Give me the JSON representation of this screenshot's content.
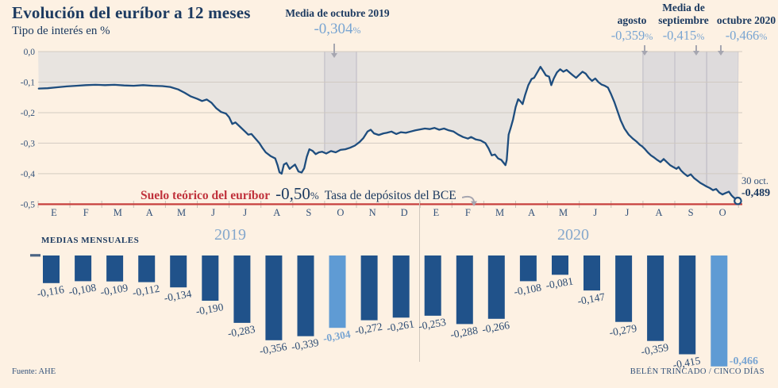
{
  "header": {
    "title": "Evolución del euríbor a 12 meses",
    "subtitle": "Tipo de interés en %"
  },
  "annotations": {
    "oct2019": {
      "label": "Media de octubre 2019",
      "value": "-0,304",
      "pct": "%"
    },
    "right_header": "Media de",
    "right_cols": [
      {
        "label": "agosto",
        "value": "-0,359",
        "pct": "%"
      },
      {
        "label": "septiembre",
        "value": "-0,415",
        "pct": "%"
      },
      {
        "label": "octubre 2020",
        "value": "-0,466",
        "pct": "%"
      }
    ],
    "floor": {
      "label": "Suelo teórico del euríbor",
      "rate": "-0,50",
      "pct": "%",
      "desc": "Tasa de depósitos del BCE"
    },
    "last_point": {
      "date": "30 oct.",
      "value": "-0,489"
    }
  },
  "bars_section": {
    "title": "MEDIAS MENSUALES",
    "year_left": "2019",
    "year_right": "2020"
  },
  "footer": {
    "source": "Fuente: AHE",
    "credit": "BELÉN TRINCADO / CINCO DÍAS"
  },
  "colors": {
    "background": "#fdf1e3",
    "ink": "#1c3a60",
    "axis": "#33527a",
    "light_blue": "#79a5d2",
    "bar_blue": "#20528a",
    "bar_light": "#5f9bd4",
    "line_blue": "#1e4d7e",
    "red": "#c7403e",
    "grid": "#cfc8bf",
    "area_fill": "#e8e4e0",
    "band_fill": "#d8d5da",
    "band_edge": "#bcb9c4",
    "arrow_gray": "#a6a6b0"
  },
  "chart_data": [
    {
      "type": "line",
      "title": "Evolución del euríbor a 12 meses",
      "ylabel": "Tipo de interés en %",
      "ylim": [
        -0.5,
        0
      ],
      "grid": true,
      "yticks": [
        "0,0",
        "-0,1",
        "-0,2",
        "-0,3",
        "-0,4",
        "-0,5"
      ],
      "ytick_values": [
        0,
        -0.1,
        -0.2,
        -0.3,
        -0.4,
        -0.5
      ],
      "x_axis": {
        "months_2019": [
          "E",
          "F",
          "M",
          "A",
          "M",
          "J",
          "J",
          "A",
          "S",
          "O",
          "N",
          "D"
        ],
        "months_2020": [
          "E",
          "F",
          "M",
          "A",
          "M",
          "J",
          "J",
          "A",
          "S",
          "O"
        ]
      },
      "floor_value": -0.5,
      "last_point": {
        "label": "30 oct.",
        "value": -0.489
      },
      "highlight_bands_months": [
        [
          9,
          10
        ],
        [
          19,
          20
        ],
        [
          20,
          21
        ],
        [
          21,
          22
        ]
      ],
      "series": [
        {
          "name": "Euríbor 12 meses (diario)",
          "points": [
            [
              0.02,
              -0.121
            ],
            [
              0.3,
              -0.12
            ],
            [
              0.6,
              -0.117
            ],
            [
              0.9,
              -0.114
            ],
            [
              1.2,
              -0.112
            ],
            [
              1.5,
              -0.11
            ],
            [
              1.8,
              -0.109
            ],
            [
              2.1,
              -0.11
            ],
            [
              2.4,
              -0.109
            ],
            [
              2.7,
              -0.111
            ],
            [
              3.0,
              -0.112
            ],
            [
              3.3,
              -0.11
            ],
            [
              3.6,
              -0.112
            ],
            [
              3.9,
              -0.113
            ],
            [
              4.15,
              -0.116
            ],
            [
              4.4,
              -0.124
            ],
            [
              4.6,
              -0.135
            ],
            [
              4.8,
              -0.147
            ],
            [
              5.0,
              -0.155
            ],
            [
              5.15,
              -0.162
            ],
            [
              5.3,
              -0.157
            ],
            [
              5.45,
              -0.168
            ],
            [
              5.6,
              -0.186
            ],
            [
              5.75,
              -0.198
            ],
            [
              5.9,
              -0.203
            ],
            [
              6.0,
              -0.215
            ],
            [
              6.1,
              -0.237
            ],
            [
              6.2,
              -0.232
            ],
            [
              6.35,
              -0.247
            ],
            [
              6.5,
              -0.262
            ],
            [
              6.6,
              -0.272
            ],
            [
              6.7,
              -0.27
            ],
            [
              6.85,
              -0.288
            ],
            [
              6.95,
              -0.3
            ],
            [
              7.05,
              -0.316
            ],
            [
              7.15,
              -0.33
            ],
            [
              7.3,
              -0.342
            ],
            [
              7.45,
              -0.35
            ],
            [
              7.52,
              -0.372
            ],
            [
              7.58,
              -0.395
            ],
            [
              7.65,
              -0.4
            ],
            [
              7.72,
              -0.37
            ],
            [
              7.8,
              -0.365
            ],
            [
              7.9,
              -0.384
            ],
            [
              7.97,
              -0.378
            ],
            [
              8.07,
              -0.37
            ],
            [
              8.18,
              -0.393
            ],
            [
              8.28,
              -0.396
            ],
            [
              8.36,
              -0.382
            ],
            [
              8.44,
              -0.345
            ],
            [
              8.52,
              -0.32
            ],
            [
              8.62,
              -0.325
            ],
            [
              8.72,
              -0.336
            ],
            [
              8.82,
              -0.33
            ],
            [
              8.92,
              -0.328
            ],
            [
              9.05,
              -0.334
            ],
            [
              9.2,
              -0.326
            ],
            [
              9.35,
              -0.33
            ],
            [
              9.5,
              -0.322
            ],
            [
              9.65,
              -0.32
            ],
            [
              9.8,
              -0.315
            ],
            [
              9.95,
              -0.308
            ],
            [
              10.1,
              -0.296
            ],
            [
              10.22,
              -0.283
            ],
            [
              10.35,
              -0.262
            ],
            [
              10.45,
              -0.256
            ],
            [
              10.55,
              -0.268
            ],
            [
              10.7,
              -0.273
            ],
            [
              10.85,
              -0.268
            ],
            [
              10.95,
              -0.266
            ],
            [
              11.1,
              -0.262
            ],
            [
              11.25,
              -0.27
            ],
            [
              11.4,
              -0.264
            ],
            [
              11.55,
              -0.266
            ],
            [
              11.7,
              -0.262
            ],
            [
              11.85,
              -0.258
            ],
            [
              12.0,
              -0.255
            ],
            [
              12.15,
              -0.252
            ],
            [
              12.3,
              -0.254
            ],
            [
              12.45,
              -0.25
            ],
            [
              12.6,
              -0.256
            ],
            [
              12.75,
              -0.252
            ],
            [
              12.9,
              -0.258
            ],
            [
              13.05,
              -0.262
            ],
            [
              13.2,
              -0.272
            ],
            [
              13.35,
              -0.28
            ],
            [
              13.5,
              -0.285
            ],
            [
              13.6,
              -0.28
            ],
            [
              13.75,
              -0.288
            ],
            [
              13.9,
              -0.291
            ],
            [
              14.05,
              -0.3
            ],
            [
              14.15,
              -0.317
            ],
            [
              14.25,
              -0.34
            ],
            [
              14.35,
              -0.337
            ],
            [
              14.45,
              -0.35
            ],
            [
              14.55,
              -0.355
            ],
            [
              14.62,
              -0.364
            ],
            [
              14.68,
              -0.372
            ],
            [
              14.72,
              -0.355
            ],
            [
              14.78,
              -0.272
            ],
            [
              14.85,
              -0.248
            ],
            [
              14.92,
              -0.222
            ],
            [
              15.0,
              -0.182
            ],
            [
              15.08,
              -0.156
            ],
            [
              15.15,
              -0.163
            ],
            [
              15.22,
              -0.172
            ],
            [
              15.3,
              -0.142
            ],
            [
              15.4,
              -0.11
            ],
            [
              15.5,
              -0.09
            ],
            [
              15.58,
              -0.086
            ],
            [
              15.68,
              -0.068
            ],
            [
              15.78,
              -0.05
            ],
            [
              15.88,
              -0.066
            ],
            [
              15.95,
              -0.078
            ],
            [
              16.05,
              -0.082
            ],
            [
              16.12,
              -0.11
            ],
            [
              16.2,
              -0.088
            ],
            [
              16.3,
              -0.068
            ],
            [
              16.4,
              -0.058
            ],
            [
              16.5,
              -0.066
            ],
            [
              16.6,
              -0.06
            ],
            [
              16.7,
              -0.069
            ],
            [
              16.8,
              -0.078
            ],
            [
              16.9,
              -0.086
            ],
            [
              17.0,
              -0.076
            ],
            [
              17.1,
              -0.066
            ],
            [
              17.2,
              -0.072
            ],
            [
              17.3,
              -0.086
            ],
            [
              17.4,
              -0.096
            ],
            [
              17.5,
              -0.088
            ],
            [
              17.6,
              -0.1
            ],
            [
              17.7,
              -0.108
            ],
            [
              17.8,
              -0.112
            ],
            [
              17.9,
              -0.118
            ],
            [
              18.0,
              -0.14
            ],
            [
              18.1,
              -0.165
            ],
            [
              18.2,
              -0.195
            ],
            [
              18.3,
              -0.225
            ],
            [
              18.42,
              -0.252
            ],
            [
              18.55,
              -0.272
            ],
            [
              18.68,
              -0.285
            ],
            [
              18.8,
              -0.295
            ],
            [
              18.9,
              -0.305
            ],
            [
              18.97,
              -0.31
            ],
            [
              19.05,
              -0.318
            ],
            [
              19.15,
              -0.33
            ],
            [
              19.25,
              -0.34
            ],
            [
              19.35,
              -0.347
            ],
            [
              19.45,
              -0.355
            ],
            [
              19.55,
              -0.362
            ],
            [
              19.65,
              -0.352
            ],
            [
              19.75,
              -0.362
            ],
            [
              19.85,
              -0.372
            ],
            [
              19.95,
              -0.378
            ],
            [
              20.05,
              -0.384
            ],
            [
              20.12,
              -0.378
            ],
            [
              20.2,
              -0.39
            ],
            [
              20.3,
              -0.4
            ],
            [
              20.4,
              -0.408
            ],
            [
              20.5,
              -0.402
            ],
            [
              20.6,
              -0.414
            ],
            [
              20.7,
              -0.422
            ],
            [
              20.8,
              -0.43
            ],
            [
              20.9,
              -0.436
            ],
            [
              21.0,
              -0.442
            ],
            [
              21.1,
              -0.447
            ],
            [
              21.2,
              -0.454
            ],
            [
              21.3,
              -0.45
            ],
            [
              21.4,
              -0.462
            ],
            [
              21.5,
              -0.468
            ],
            [
              21.6,
              -0.463
            ],
            [
              21.7,
              -0.459
            ],
            [
              21.78,
              -0.471
            ],
            [
              21.86,
              -0.479
            ],
            [
              21.93,
              -0.483
            ],
            [
              21.98,
              -0.489
            ]
          ]
        }
      ]
    },
    {
      "type": "bar",
      "title": "MEDIAS MENSUALES",
      "groups": [
        {
          "year": "2019",
          "values": [
            -0.116,
            -0.108,
            -0.109,
            -0.112,
            -0.134,
            -0.19,
            -0.283,
            -0.356,
            -0.339,
            -0.304,
            -0.272,
            -0.261
          ],
          "labels": [
            "-0,116",
            "-0,108",
            "-0,109",
            "-0,112",
            "-0,134",
            "-0,190",
            "-0,283",
            "-0,356",
            "-0,339",
            "-0,304",
            "-0,272",
            "-0,261"
          ],
          "highlight_index": 9
        },
        {
          "year": "2020",
          "values": [
            -0.253,
            -0.288,
            -0.266,
            -0.108,
            -0.081,
            -0.147,
            -0.279,
            -0.359,
            -0.415,
            -0.466
          ],
          "labels": [
            "-0,253",
            "-0,288",
            "-0,266",
            "-0,108",
            "-0,081",
            "-0,147",
            "-0,279",
            "-0,359",
            "-0,415",
            "-0,466"
          ],
          "highlight_index": 9
        }
      ]
    }
  ]
}
